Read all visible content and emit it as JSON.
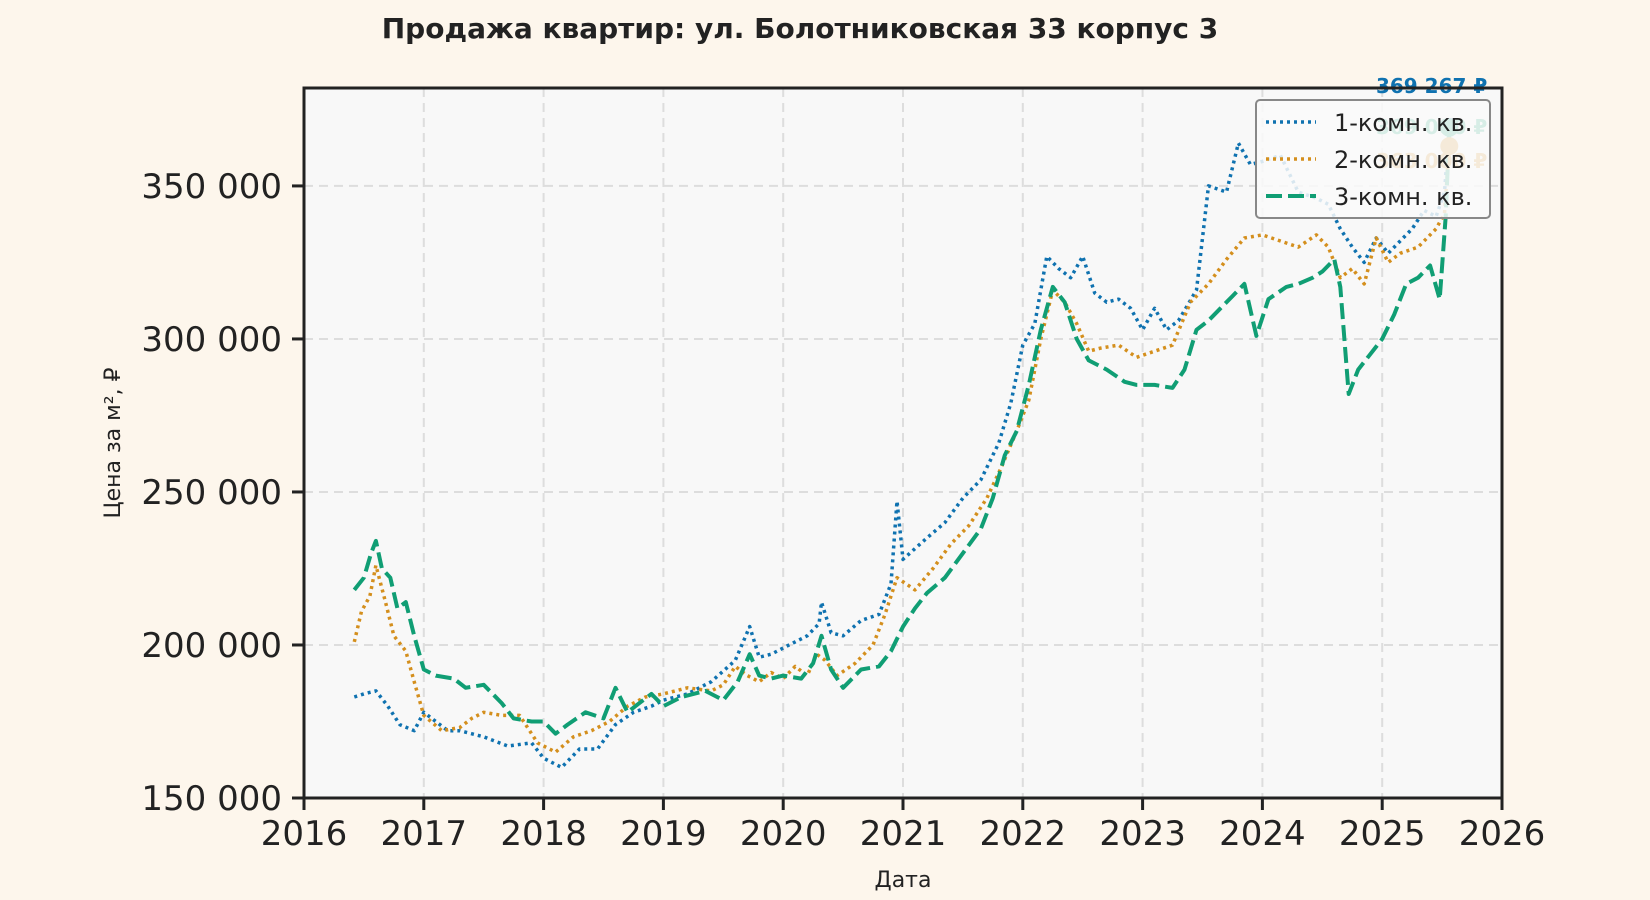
{
  "chart_data": {
    "type": "line",
    "title": "Продажа квартир: ул. Болотниковская 33 корпус 3",
    "xlabel": "Дата",
    "ylabel": "Цена за м², ₽",
    "xlim": [
      2016,
      2026
    ],
    "ylim": [
      150000,
      382000
    ],
    "x_ticks": [
      "2016",
      "2017",
      "2018",
      "2019",
      "2020",
      "2021",
      "2022",
      "2023",
      "2024",
      "2025",
      "2026"
    ],
    "y_ticks": [
      {
        "value": 150000,
        "label": "150 000"
      },
      {
        "value": 200000,
        "label": "200 000"
      },
      {
        "value": 250000,
        "label": "250 000"
      },
      {
        "value": 300000,
        "label": "300 000"
      },
      {
        "value": 350000,
        "label": "350 000"
      }
    ],
    "grid": true,
    "legend_position": "top-right",
    "series": [
      {
        "name": "1-комн. кв.",
        "color": "#0f72b0",
        "dash": "dotted",
        "end_label": "369 267 ₽",
        "points": [
          [
            2016.42,
            183000
          ],
          [
            2016.5,
            184000
          ],
          [
            2016.6,
            185000
          ],
          [
            2016.7,
            180000
          ],
          [
            2016.8,
            174000
          ],
          [
            2016.92,
            172000
          ],
          [
            2017.0,
            178000
          ],
          [
            2017.1,
            175000
          ],
          [
            2017.2,
            172000
          ],
          [
            2017.3,
            172000
          ],
          [
            2017.5,
            170000
          ],
          [
            2017.7,
            167000
          ],
          [
            2017.9,
            168000
          ],
          [
            2018.0,
            163000
          ],
          [
            2018.15,
            160000
          ],
          [
            2018.3,
            166000
          ],
          [
            2018.45,
            166000
          ],
          [
            2018.6,
            174000
          ],
          [
            2018.75,
            178000
          ],
          [
            2018.9,
            180000
          ],
          [
            2019.0,
            182000
          ],
          [
            2019.2,
            184000
          ],
          [
            2019.4,
            188000
          ],
          [
            2019.6,
            195000
          ],
          [
            2019.72,
            206000
          ],
          [
            2019.8,
            196000
          ],
          [
            2019.9,
            197000
          ],
          [
            2020.0,
            199000
          ],
          [
            2020.2,
            203000
          ],
          [
            2020.3,
            207000
          ],
          [
            2020.32,
            214000
          ],
          [
            2020.4,
            204000
          ],
          [
            2020.5,
            203000
          ],
          [
            2020.65,
            208000
          ],
          [
            2020.8,
            210000
          ],
          [
            2020.9,
            220000
          ],
          [
            2020.95,
            247000
          ],
          [
            2021.0,
            228000
          ],
          [
            2021.2,
            235000
          ],
          [
            2021.35,
            240000
          ],
          [
            2021.5,
            248000
          ],
          [
            2021.65,
            254000
          ],
          [
            2021.8,
            266000
          ],
          [
            2021.9,
            279000
          ],
          [
            2022.0,
            298000
          ],
          [
            2022.1,
            305000
          ],
          [
            2022.2,
            327000
          ],
          [
            2022.3,
            323000
          ],
          [
            2022.4,
            320000
          ],
          [
            2022.5,
            327000
          ],
          [
            2022.6,
            315000
          ],
          [
            2022.7,
            312000
          ],
          [
            2022.8,
            313000
          ],
          [
            2022.9,
            310000
          ],
          [
            2023.0,
            303000
          ],
          [
            2023.1,
            310000
          ],
          [
            2023.2,
            303000
          ],
          [
            2023.3,
            306000
          ],
          [
            2023.45,
            316000
          ],
          [
            2023.55,
            350000
          ],
          [
            2023.7,
            348000
          ],
          [
            2023.8,
            364000
          ],
          [
            2023.9,
            357000
          ],
          [
            2024.0,
            358000
          ],
          [
            2024.15,
            360000
          ],
          [
            2024.3,
            348000
          ],
          [
            2024.45,
            346000
          ],
          [
            2024.55,
            344000
          ],
          [
            2024.65,
            336000
          ],
          [
            2024.75,
            330000
          ],
          [
            2024.85,
            325000
          ],
          [
            2024.95,
            333000
          ],
          [
            2025.05,
            328000
          ],
          [
            2025.15,
            332000
          ],
          [
            2025.25,
            336000
          ],
          [
            2025.35,
            342000
          ],
          [
            2025.45,
            340000
          ],
          [
            2025.52,
            348000
          ],
          [
            2025.56,
            369267
          ]
        ]
      },
      {
        "name": "2-комн. кв.",
        "color": "#d48f1d",
        "dash": "dotted",
        "end_label": "363 000 ₽",
        "points": [
          [
            2016.42,
            201000
          ],
          [
            2016.48,
            211000
          ],
          [
            2016.55,
            216000
          ],
          [
            2016.6,
            226000
          ],
          [
            2016.68,
            214000
          ],
          [
            2016.75,
            203000
          ],
          [
            2016.85,
            198000
          ],
          [
            2016.92,
            188000
          ],
          [
            2017.0,
            177000
          ],
          [
            2017.15,
            172000
          ],
          [
            2017.3,
            173000
          ],
          [
            2017.4,
            176000
          ],
          [
            2017.5,
            178000
          ],
          [
            2017.65,
            177000
          ],
          [
            2017.8,
            177000
          ],
          [
            2017.95,
            168000
          ],
          [
            2018.1,
            165000
          ],
          [
            2018.25,
            170000
          ],
          [
            2018.4,
            172000
          ],
          [
            2018.55,
            175000
          ],
          [
            2018.7,
            180000
          ],
          [
            2018.85,
            183000
          ],
          [
            2019.0,
            184000
          ],
          [
            2019.2,
            186000
          ],
          [
            2019.4,
            185000
          ],
          [
            2019.5,
            187000
          ],
          [
            2019.6,
            193000
          ],
          [
            2019.7,
            190000
          ],
          [
            2019.8,
            188000
          ],
          [
            2019.9,
            191000
          ],
          [
            2020.0,
            189000
          ],
          [
            2020.1,
            193000
          ],
          [
            2020.2,
            190000
          ],
          [
            2020.28,
            197000
          ],
          [
            2020.35,
            195000
          ],
          [
            2020.45,
            190000
          ],
          [
            2020.6,
            194000
          ],
          [
            2020.75,
            200000
          ],
          [
            2020.85,
            210000
          ],
          [
            2020.95,
            222000
          ],
          [
            2021.1,
            218000
          ],
          [
            2021.25,
            225000
          ],
          [
            2021.4,
            233000
          ],
          [
            2021.55,
            239000
          ],
          [
            2021.7,
            248000
          ],
          [
            2021.82,
            258000
          ],
          [
            2021.95,
            270000
          ],
          [
            2022.05,
            280000
          ],
          [
            2022.15,
            300000
          ],
          [
            2022.25,
            316000
          ],
          [
            2022.35,
            312000
          ],
          [
            2022.45,
            305000
          ],
          [
            2022.55,
            296000
          ],
          [
            2022.65,
            297000
          ],
          [
            2022.8,
            298000
          ],
          [
            2022.95,
            294000
          ],
          [
            2023.1,
            296000
          ],
          [
            2023.25,
            298000
          ],
          [
            2023.4,
            312000
          ],
          [
            2023.55,
            318000
          ],
          [
            2023.7,
            326000
          ],
          [
            2023.85,
            333000
          ],
          [
            2024.0,
            334000
          ],
          [
            2024.15,
            332000
          ],
          [
            2024.3,
            330000
          ],
          [
            2024.45,
            334000
          ],
          [
            2024.55,
            330000
          ],
          [
            2024.65,
            320000
          ],
          [
            2024.75,
            323000
          ],
          [
            2024.85,
            318000
          ],
          [
            2024.95,
            333000
          ],
          [
            2025.05,
            325000
          ],
          [
            2025.15,
            328000
          ],
          [
            2025.3,
            330000
          ],
          [
            2025.45,
            336000
          ],
          [
            2025.52,
            341000
          ],
          [
            2025.56,
            363000
          ]
        ]
      },
      {
        "name": "3-комн. кв.",
        "color": "#109e74",
        "dash": "dashed",
        "end_label": "369 000 ₽",
        "points": [
          [
            2016.42,
            218000
          ],
          [
            2016.5,
            222000
          ],
          [
            2016.56,
            230000
          ],
          [
            2016.6,
            234000
          ],
          [
            2016.65,
            225000
          ],
          [
            2016.72,
            222000
          ],
          [
            2016.78,
            212000
          ],
          [
            2016.85,
            214000
          ],
          [
            2016.92,
            203000
          ],
          [
            2017.0,
            192000
          ],
          [
            2017.1,
            190000
          ],
          [
            2017.25,
            189000
          ],
          [
            2017.35,
            186000
          ],
          [
            2017.5,
            187000
          ],
          [
            2017.65,
            181000
          ],
          [
            2017.75,
            176000
          ],
          [
            2017.9,
            175000
          ],
          [
            2018.0,
            175000
          ],
          [
            2018.1,
            171000
          ],
          [
            2018.2,
            174000
          ],
          [
            2018.35,
            178000
          ],
          [
            2018.5,
            176000
          ],
          [
            2018.6,
            186000
          ],
          [
            2018.7,
            178000
          ],
          [
            2018.8,
            181000
          ],
          [
            2018.9,
            184000
          ],
          [
            2019.0,
            180000
          ],
          [
            2019.15,
            183000
          ],
          [
            2019.35,
            185000
          ],
          [
            2019.5,
            182000
          ],
          [
            2019.62,
            188000
          ],
          [
            2019.72,
            197000
          ],
          [
            2019.8,
            190000
          ],
          [
            2019.9,
            189000
          ],
          [
            2020.0,
            190000
          ],
          [
            2020.15,
            189000
          ],
          [
            2020.25,
            194000
          ],
          [
            2020.32,
            203000
          ],
          [
            2020.4,
            192000
          ],
          [
            2020.5,
            186000
          ],
          [
            2020.65,
            192000
          ],
          [
            2020.8,
            193000
          ],
          [
            2020.9,
            198000
          ],
          [
            2021.0,
            206000
          ],
          [
            2021.1,
            212000
          ],
          [
            2021.2,
            217000
          ],
          [
            2021.35,
            222000
          ],
          [
            2021.5,
            230000
          ],
          [
            2021.65,
            238000
          ],
          [
            2021.75,
            248000
          ],
          [
            2021.85,
            262000
          ],
          [
            2021.95,
            270000
          ],
          [
            2022.05,
            285000
          ],
          [
            2022.15,
            303000
          ],
          [
            2022.25,
            317000
          ],
          [
            2022.35,
            312000
          ],
          [
            2022.45,
            300000
          ],
          [
            2022.55,
            293000
          ],
          [
            2022.7,
            290000
          ],
          [
            2022.85,
            286000
          ],
          [
            2022.95,
            285000
          ],
          [
            2023.1,
            285000
          ],
          [
            2023.25,
            284000
          ],
          [
            2023.35,
            290000
          ],
          [
            2023.45,
            303000
          ],
          [
            2023.55,
            306000
          ],
          [
            2023.65,
            310000
          ],
          [
            2023.75,
            314000
          ],
          [
            2023.85,
            318000
          ],
          [
            2023.95,
            301000
          ],
          [
            2024.05,
            313000
          ],
          [
            2024.2,
            317000
          ],
          [
            2024.3,
            318000
          ],
          [
            2024.42,
            320000
          ],
          [
            2024.5,
            322000
          ],
          [
            2024.6,
            326000
          ],
          [
            2024.65,
            317000
          ],
          [
            2024.72,
            282000
          ],
          [
            2024.8,
            290000
          ],
          [
            2024.9,
            295000
          ],
          [
            2025.0,
            300000
          ],
          [
            2025.1,
            308000
          ],
          [
            2025.2,
            318000
          ],
          [
            2025.3,
            320000
          ],
          [
            2025.4,
            324000
          ],
          [
            2025.48,
            313000
          ],
          [
            2025.53,
            340000
          ],
          [
            2025.56,
            369000
          ]
        ]
      }
    ]
  }
}
